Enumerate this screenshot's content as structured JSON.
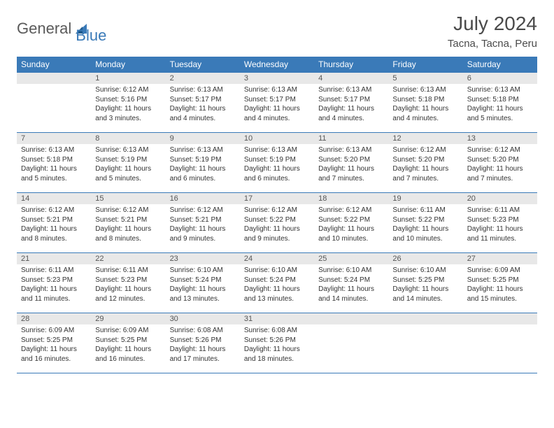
{
  "brand": {
    "part1": "General",
    "part2": "Blue"
  },
  "title": "July 2024",
  "location": "Tacna, Tacna, Peru",
  "colors": {
    "header_bg": "#3a7ab8",
    "header_text": "#ffffff",
    "daynum_bg": "#e8e8e8",
    "row_border": "#3a7ab8",
    "body_text": "#333333",
    "logo_gray": "#5a5a5a",
    "logo_blue": "#3a7ab8"
  },
  "day_headers": [
    "Sunday",
    "Monday",
    "Tuesday",
    "Wednesday",
    "Thursday",
    "Friday",
    "Saturday"
  ],
  "weeks": [
    [
      null,
      {
        "n": "1",
        "sunrise": "Sunrise: 6:12 AM",
        "sunset": "Sunset: 5:16 PM",
        "daylight": "Daylight: 11 hours and 3 minutes."
      },
      {
        "n": "2",
        "sunrise": "Sunrise: 6:13 AM",
        "sunset": "Sunset: 5:17 PM",
        "daylight": "Daylight: 11 hours and 4 minutes."
      },
      {
        "n": "3",
        "sunrise": "Sunrise: 6:13 AM",
        "sunset": "Sunset: 5:17 PM",
        "daylight": "Daylight: 11 hours and 4 minutes."
      },
      {
        "n": "4",
        "sunrise": "Sunrise: 6:13 AM",
        "sunset": "Sunset: 5:17 PM",
        "daylight": "Daylight: 11 hours and 4 minutes."
      },
      {
        "n": "5",
        "sunrise": "Sunrise: 6:13 AM",
        "sunset": "Sunset: 5:18 PM",
        "daylight": "Daylight: 11 hours and 4 minutes."
      },
      {
        "n": "6",
        "sunrise": "Sunrise: 6:13 AM",
        "sunset": "Sunset: 5:18 PM",
        "daylight": "Daylight: 11 hours and 5 minutes."
      }
    ],
    [
      {
        "n": "7",
        "sunrise": "Sunrise: 6:13 AM",
        "sunset": "Sunset: 5:18 PM",
        "daylight": "Daylight: 11 hours and 5 minutes."
      },
      {
        "n": "8",
        "sunrise": "Sunrise: 6:13 AM",
        "sunset": "Sunset: 5:19 PM",
        "daylight": "Daylight: 11 hours and 5 minutes."
      },
      {
        "n": "9",
        "sunrise": "Sunrise: 6:13 AM",
        "sunset": "Sunset: 5:19 PM",
        "daylight": "Daylight: 11 hours and 6 minutes."
      },
      {
        "n": "10",
        "sunrise": "Sunrise: 6:13 AM",
        "sunset": "Sunset: 5:19 PM",
        "daylight": "Daylight: 11 hours and 6 minutes."
      },
      {
        "n": "11",
        "sunrise": "Sunrise: 6:13 AM",
        "sunset": "Sunset: 5:20 PM",
        "daylight": "Daylight: 11 hours and 7 minutes."
      },
      {
        "n": "12",
        "sunrise": "Sunrise: 6:12 AM",
        "sunset": "Sunset: 5:20 PM",
        "daylight": "Daylight: 11 hours and 7 minutes."
      },
      {
        "n": "13",
        "sunrise": "Sunrise: 6:12 AM",
        "sunset": "Sunset: 5:20 PM",
        "daylight": "Daylight: 11 hours and 7 minutes."
      }
    ],
    [
      {
        "n": "14",
        "sunrise": "Sunrise: 6:12 AM",
        "sunset": "Sunset: 5:21 PM",
        "daylight": "Daylight: 11 hours and 8 minutes."
      },
      {
        "n": "15",
        "sunrise": "Sunrise: 6:12 AM",
        "sunset": "Sunset: 5:21 PM",
        "daylight": "Daylight: 11 hours and 8 minutes."
      },
      {
        "n": "16",
        "sunrise": "Sunrise: 6:12 AM",
        "sunset": "Sunset: 5:21 PM",
        "daylight": "Daylight: 11 hours and 9 minutes."
      },
      {
        "n": "17",
        "sunrise": "Sunrise: 6:12 AM",
        "sunset": "Sunset: 5:22 PM",
        "daylight": "Daylight: 11 hours and 9 minutes."
      },
      {
        "n": "18",
        "sunrise": "Sunrise: 6:12 AM",
        "sunset": "Sunset: 5:22 PM",
        "daylight": "Daylight: 11 hours and 10 minutes."
      },
      {
        "n": "19",
        "sunrise": "Sunrise: 6:11 AM",
        "sunset": "Sunset: 5:22 PM",
        "daylight": "Daylight: 11 hours and 10 minutes."
      },
      {
        "n": "20",
        "sunrise": "Sunrise: 6:11 AM",
        "sunset": "Sunset: 5:23 PM",
        "daylight": "Daylight: 11 hours and 11 minutes."
      }
    ],
    [
      {
        "n": "21",
        "sunrise": "Sunrise: 6:11 AM",
        "sunset": "Sunset: 5:23 PM",
        "daylight": "Daylight: 11 hours and 11 minutes."
      },
      {
        "n": "22",
        "sunrise": "Sunrise: 6:11 AM",
        "sunset": "Sunset: 5:23 PM",
        "daylight": "Daylight: 11 hours and 12 minutes."
      },
      {
        "n": "23",
        "sunrise": "Sunrise: 6:10 AM",
        "sunset": "Sunset: 5:24 PM",
        "daylight": "Daylight: 11 hours and 13 minutes."
      },
      {
        "n": "24",
        "sunrise": "Sunrise: 6:10 AM",
        "sunset": "Sunset: 5:24 PM",
        "daylight": "Daylight: 11 hours and 13 minutes."
      },
      {
        "n": "25",
        "sunrise": "Sunrise: 6:10 AM",
        "sunset": "Sunset: 5:24 PM",
        "daylight": "Daylight: 11 hours and 14 minutes."
      },
      {
        "n": "26",
        "sunrise": "Sunrise: 6:10 AM",
        "sunset": "Sunset: 5:25 PM",
        "daylight": "Daylight: 11 hours and 14 minutes."
      },
      {
        "n": "27",
        "sunrise": "Sunrise: 6:09 AM",
        "sunset": "Sunset: 5:25 PM",
        "daylight": "Daylight: 11 hours and 15 minutes."
      }
    ],
    [
      {
        "n": "28",
        "sunrise": "Sunrise: 6:09 AM",
        "sunset": "Sunset: 5:25 PM",
        "daylight": "Daylight: 11 hours and 16 minutes."
      },
      {
        "n": "29",
        "sunrise": "Sunrise: 6:09 AM",
        "sunset": "Sunset: 5:25 PM",
        "daylight": "Daylight: 11 hours and 16 minutes."
      },
      {
        "n": "30",
        "sunrise": "Sunrise: 6:08 AM",
        "sunset": "Sunset: 5:26 PM",
        "daylight": "Daylight: 11 hours and 17 minutes."
      },
      {
        "n": "31",
        "sunrise": "Sunrise: 6:08 AM",
        "sunset": "Sunset: 5:26 PM",
        "daylight": "Daylight: 11 hours and 18 minutes."
      },
      null,
      null,
      null
    ]
  ]
}
